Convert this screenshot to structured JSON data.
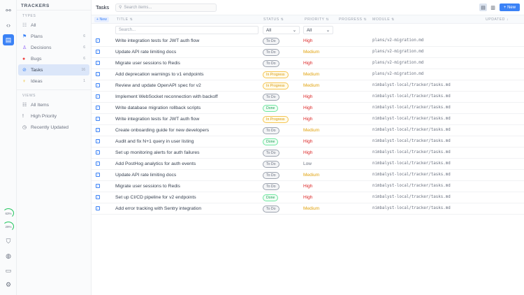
{
  "rail": {
    "gauges": [
      {
        "label": "63%",
        "value": 63
      },
      {
        "label": "29%",
        "value": 29
      }
    ]
  },
  "sidebar": {
    "title": "TRACKERS",
    "types_label": "TYPES",
    "views_label": "VIEWS",
    "types": [
      {
        "label": "All",
        "icon": "list-icon",
        "count": ""
      },
      {
        "label": "Plans",
        "icon": "flag-icon",
        "count": "6"
      },
      {
        "label": "Decisions",
        "icon": "decision-icon",
        "count": "6"
      },
      {
        "label": "Bugs",
        "icon": "bug-icon",
        "count": "6"
      },
      {
        "label": "Tasks",
        "icon": "check-circle-icon",
        "count": "16"
      },
      {
        "label": "Ideas",
        "icon": "lightbulb-icon",
        "count": "1"
      }
    ],
    "views": [
      {
        "label": "All Items",
        "icon": "list-icon"
      },
      {
        "label": "High Priority",
        "icon": "exclamation-icon"
      },
      {
        "label": "Recently Updated",
        "icon": "clock-icon"
      }
    ]
  },
  "header": {
    "title": "Tasks",
    "search_placeholder": "Search items...",
    "new_label": "+ New"
  },
  "table": {
    "new_label": "+ New",
    "columns": {
      "title": "TITLE ⇅",
      "status": "STATUS ⇅",
      "priority": "PRIORITY ⇅",
      "progress": "PROGRESS ⇅",
      "module": "MODULE ⇅",
      "updated": "UPDATED ↓"
    },
    "filters": {
      "search_placeholder": "Search...",
      "status": "All",
      "priority": "All"
    },
    "rows": [
      {
        "title": "Write integration tests for JWT auth flow",
        "status": "To Do",
        "priority": "High",
        "module": "plans/v2-migration.md"
      },
      {
        "title": "Update API rate limiting docs",
        "status": "To Do",
        "priority": "Medium",
        "module": "plans/v2-migration.md"
      },
      {
        "title": "Migrate user sessions to Redis",
        "status": "To Do",
        "priority": "High",
        "module": "plans/v2-migration.md"
      },
      {
        "title": "Add deprecation warnings to v1 endpoints",
        "status": "In Progress",
        "priority": "Medium",
        "module": "plans/v2-migration.md"
      },
      {
        "title": "Review and update OpenAPI spec for v2",
        "status": "In Progress",
        "priority": "Medium",
        "module": "nimbalyst-local/tracker/tasks.md"
      },
      {
        "title": "Implement WebSocket reconnection with backoff",
        "status": "To Do",
        "priority": "High",
        "module": "nimbalyst-local/tracker/tasks.md"
      },
      {
        "title": "Write database migration rollback scripts",
        "status": "Done",
        "priority": "High",
        "module": "nimbalyst-local/tracker/tasks.md"
      },
      {
        "title": "Write integration tests for JWT auth flow",
        "status": "In Progress",
        "priority": "High",
        "module": "nimbalyst-local/tracker/tasks.md"
      },
      {
        "title": "Create onboarding guide for new developers",
        "status": "To Do",
        "priority": "Medium",
        "module": "nimbalyst-local/tracker/tasks.md"
      },
      {
        "title": "Audit and fix N+1 query in user listing",
        "status": "Done",
        "priority": "High",
        "module": "nimbalyst-local/tracker/tasks.md"
      },
      {
        "title": "Set up monitoring alerts for auth failures",
        "status": "To Do",
        "priority": "High",
        "module": "nimbalyst-local/tracker/tasks.md"
      },
      {
        "title": "Add PostHog analytics for auth events",
        "status": "To Do",
        "priority": "Low",
        "module": "nimbalyst-local/tracker/tasks.md"
      },
      {
        "title": "Update API rate limiting docs",
        "status": "To Do",
        "priority": "Medium",
        "module": "nimbalyst-local/tracker/tasks.md"
      },
      {
        "title": "Migrate user sessions to Redis",
        "status": "To Do",
        "priority": "High",
        "module": "nimbalyst-local/tracker/tasks.md"
      },
      {
        "title": "Set up CI/CD pipeline for v2 endpoints",
        "status": "Done",
        "priority": "High",
        "module": "nimbalyst-local/tracker/tasks.md"
      },
      {
        "title": "Add error tracking with Sentry integration",
        "status": "To Do",
        "priority": "Medium",
        "module": "nimbalyst-local/tracker/tasks.md"
      }
    ]
  },
  "colors": {
    "accent": "#3b82f6",
    "high": "#dc2626",
    "medium": "#e0a10b",
    "low": "#6b7280",
    "active_item": "#dbe6f9"
  }
}
